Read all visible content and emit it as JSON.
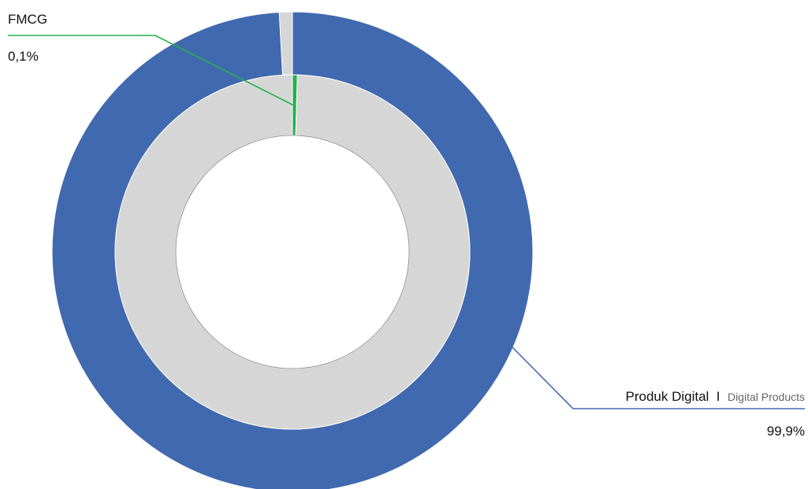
{
  "chart_data": {
    "type": "pie",
    "title": "",
    "rings": [
      {
        "ring": "outer",
        "slices": [
          {
            "name": "Produk Digital",
            "value": 99.9,
            "color": "#4169b0"
          },
          {
            "name": "FMCG",
            "value": 0.1,
            "color": "#d6d6d6"
          }
        ]
      },
      {
        "ring": "inner",
        "slices": [
          {
            "name": "FMCG",
            "value": 0.1,
            "color": "#22b14c"
          },
          {
            "name": "Produk Digital",
            "value": 99.9,
            "color": "#d6d6d6"
          }
        ]
      }
    ],
    "labels": {
      "fmcg": {
        "name": "FMCG",
        "value": "0,1%",
        "leader_color": "#22b14c"
      },
      "digital": {
        "name": "Produk Digital",
        "separator": "I",
        "translation": "Digital Products",
        "value": "99,9%",
        "leader_color": "#4169b0"
      }
    }
  }
}
